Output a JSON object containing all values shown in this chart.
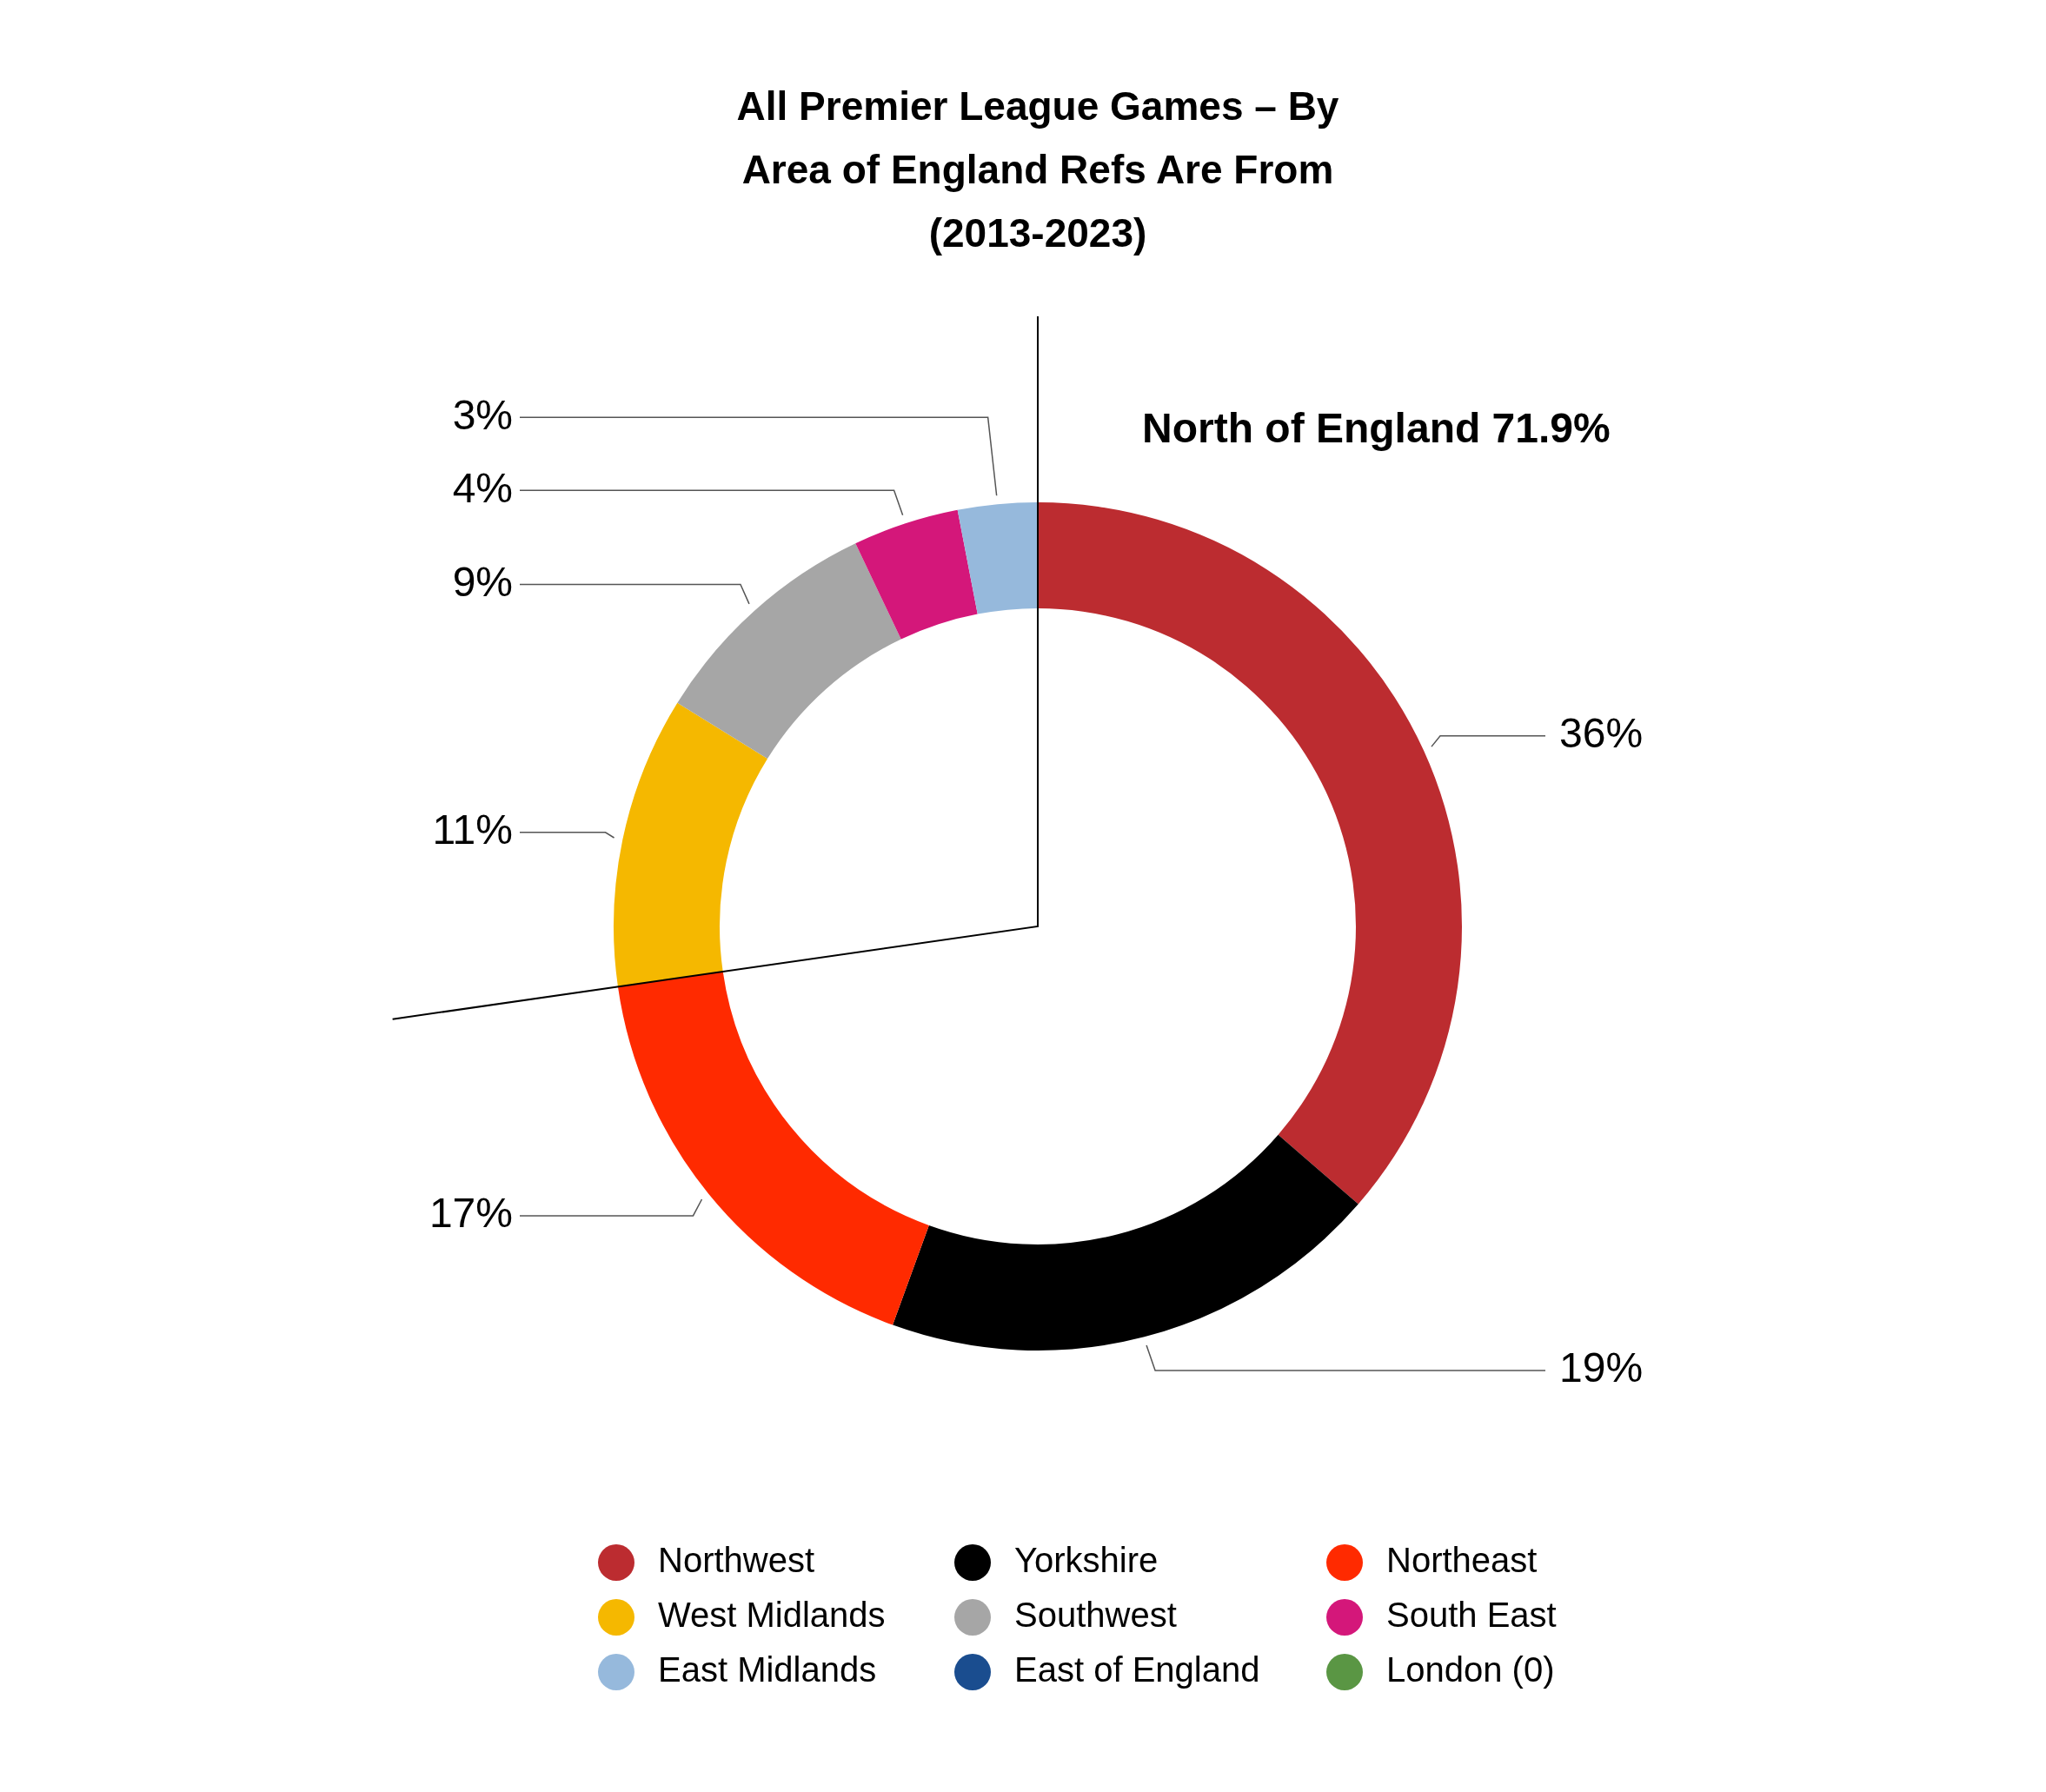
{
  "chart_data": {
    "type": "donut",
    "title": "All Premier League Games – By Area of England Refs Are From (2013-2023)",
    "categories": [
      "Northwest",
      "Yorkshire",
      "Northeast",
      "West Midlands",
      "Southwest",
      "South East",
      "East Midlands",
      "East of England",
      "London (0)"
    ],
    "values": [
      36,
      19,
      17,
      11,
      9,
      4,
      3,
      0,
      0
    ],
    "colors": [
      "#bc2c30",
      "#000000",
      "#ff2a00",
      "#f5b800",
      "#a6a6a6",
      "#d4177a",
      "#96b9dc",
      "#1a4d8f",
      "#5a9644"
    ],
    "value_labels": [
      "36%",
      "19%",
      "17%",
      "11%",
      "9%",
      "4%",
      "3%",
      null,
      null
    ],
    "annotations": [
      "North of England 71.9%"
    ],
    "legend": "bottom"
  }
}
